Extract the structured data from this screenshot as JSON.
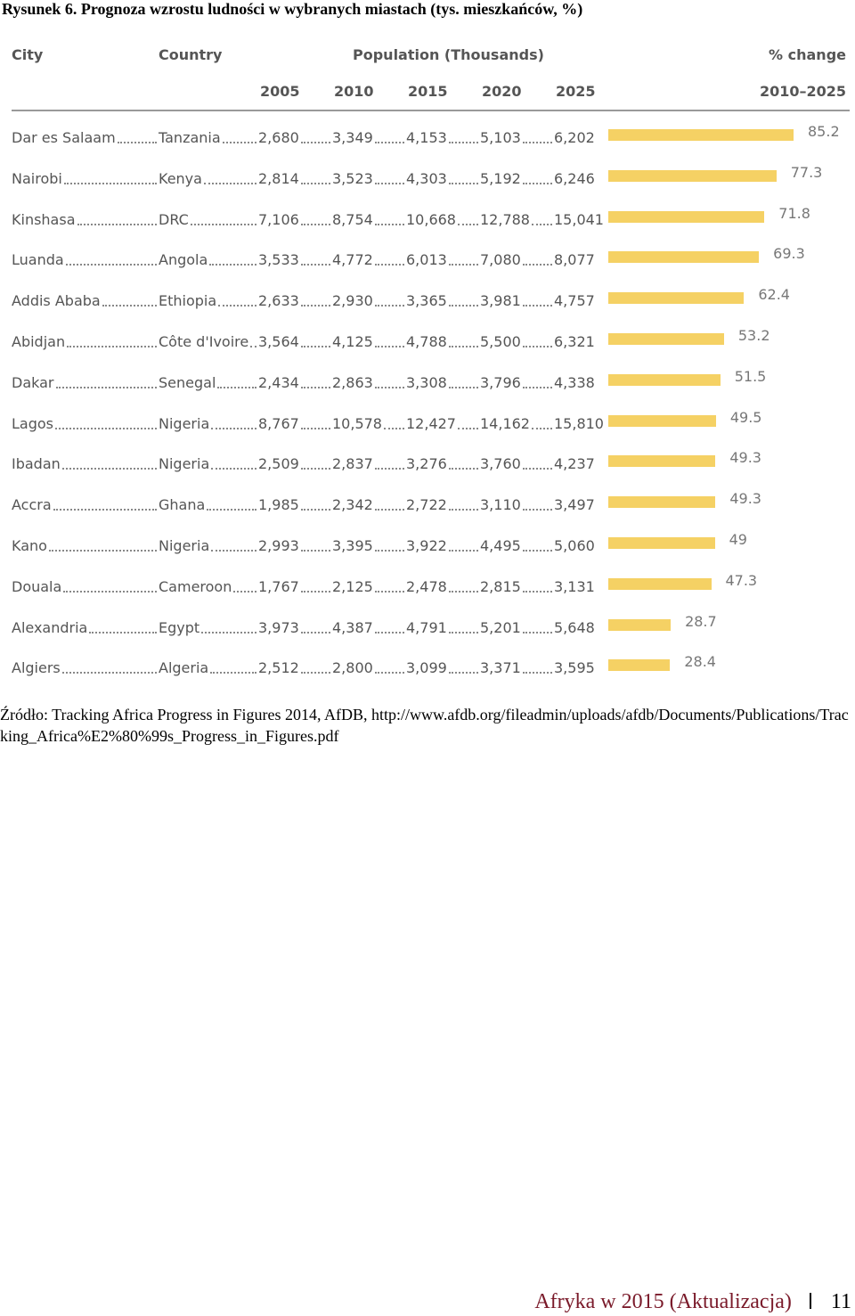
{
  "caption": "Rysunek 6. Prognoza wzrostu ludności w wybranych miastach (tys. mieszkańców, %)",
  "headers": {
    "city": "City",
    "country": "Country",
    "population": "Population (Thousands)",
    "change": "% change",
    "years": [
      "2005",
      "2010",
      "2015",
      "2020",
      "2025"
    ],
    "change_range": "2010–2025"
  },
  "rows": [
    {
      "city": "Dar es Salaam",
      "country": "Tanzania",
      "values": [
        "2,680",
        "3,349",
        "4,153",
        "5,103",
        "6,202"
      ],
      "change": "85.2",
      "change_value": 85.2
    },
    {
      "city": "Nairobi",
      "country": "Kenya",
      "values": [
        "2,814",
        "3,523",
        "4,303",
        "5,192",
        "6,246"
      ],
      "change": "77.3",
      "change_value": 77.3
    },
    {
      "city": "Kinshasa",
      "country": "DRC",
      "values": [
        "7,106",
        "8,754",
        "10,668",
        "12,788",
        "15,041"
      ],
      "change": "71.8",
      "change_value": 71.8
    },
    {
      "city": "Luanda",
      "country": "Angola",
      "values": [
        "3,533",
        "4,772",
        "6,013",
        "7,080",
        "8,077"
      ],
      "change": "69.3",
      "change_value": 69.3
    },
    {
      "city": "Addis Ababa",
      "country": "Ethiopia",
      "values": [
        "2,633",
        "2,930",
        "3,365",
        "3,981",
        "4,757"
      ],
      "change": "62.4",
      "change_value": 62.4
    },
    {
      "city": "Abidjan",
      "country": "Côte d'Ivoire",
      "values": [
        "3,564",
        "4,125",
        "4,788",
        "5,500",
        "6,321"
      ],
      "change": "53.2",
      "change_value": 53.2
    },
    {
      "city": "Dakar",
      "country": "Senegal",
      "values": [
        "2,434",
        "2,863",
        "3,308",
        "3,796",
        "4,338"
      ],
      "change": "51.5",
      "change_value": 51.5
    },
    {
      "city": "Lagos",
      "country": "Nigeria",
      "values": [
        "8,767",
        "10,578",
        "12,427",
        "14,162",
        "15,810"
      ],
      "change": "49.5",
      "change_value": 49.5
    },
    {
      "city": "Ibadan",
      "country": "Nigeria",
      "values": [
        "2,509",
        "2,837",
        "3,276",
        "3,760",
        "4,237"
      ],
      "change": "49.3",
      "change_value": 49.3
    },
    {
      "city": "Accra",
      "country": "Ghana",
      "values": [
        "1,985",
        "2,342",
        "2,722",
        "3,110",
        "3,497"
      ],
      "change": "49.3",
      "change_value": 49.3
    },
    {
      "city": "Kano",
      "country": "Nigeria",
      "values": [
        "2,993",
        "3,395",
        "3,922",
        "4,495",
        "5,060"
      ],
      "change": "49",
      "change_value": 49
    },
    {
      "city": "Douala",
      "country": "Cameroon",
      "values": [
        "1,767",
        "2,125",
        "2,478",
        "2,815",
        "3,131"
      ],
      "change": "47.3",
      "change_value": 47.3
    },
    {
      "city": "Alexandria",
      "country": "Egypt",
      "values": [
        "3,973",
        "4,387",
        "4,791",
        "5,201",
        "5,648"
      ],
      "change": "28.7",
      "change_value": 28.7
    },
    {
      "city": "Algiers",
      "country": "Algeria",
      "values": [
        "2,512",
        "2,800",
        "3,099",
        "3,371",
        "3,595"
      ],
      "change": "28.4",
      "change_value": 28.4
    }
  ],
  "source": {
    "label": "Źródło:",
    "text": " Tracking Africa Progress in Figures 2014, AfDB, http://www.afdb.org/fileadmin/uploads/afdb/Documents/Publications/Tracking_Africa%E2%80%99s_Progress_in_Figures.pdf"
  },
  "footer": {
    "title": "Afryka w 2015 (Aktualizacja)",
    "page": "11"
  },
  "colors": {
    "bar": "#f5d164"
  }
}
